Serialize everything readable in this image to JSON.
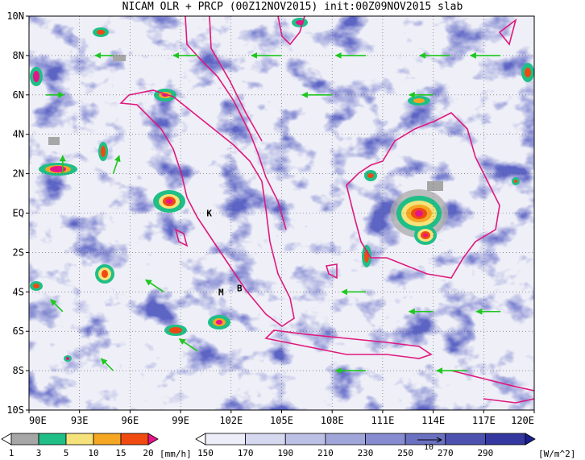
{
  "chart_data": {
    "type": "heatmap",
    "title": "NICAM OLR + PRCP (00Z12NOV2015) init:00Z09NOV2015 slab",
    "x_axis": {
      "range": [
        90,
        120
      ],
      "ticks": [
        {
          "value": 90,
          "label": "90E"
        },
        {
          "value": 93,
          "label": "93E"
        },
        {
          "value": 96,
          "label": "96E"
        },
        {
          "value": 99,
          "label": "99E"
        },
        {
          "value": 102,
          "label": "102E"
        },
        {
          "value": 105,
          "label": "105E"
        },
        {
          "value": 108,
          "label": "108E"
        },
        {
          "value": 111,
          "label": "111E"
        },
        {
          "value": 114,
          "label": "114E"
        },
        {
          "value": 117,
          "label": "117E"
        },
        {
          "value": 120,
          "label": "120E"
        }
      ]
    },
    "y_axis": {
      "range": [
        -10,
        10
      ],
      "ticks": [
        {
          "value": 10,
          "label": "10N"
        },
        {
          "value": 8,
          "label": "8N"
        },
        {
          "value": 6,
          "label": "6N"
        },
        {
          "value": 4,
          "label": "4N"
        },
        {
          "value": 2,
          "label": "2N"
        },
        {
          "value": 0,
          "label": "EQ"
        },
        {
          "value": -2,
          "label": "2S"
        },
        {
          "value": -4,
          "label": "4S"
        },
        {
          "value": -6,
          "label": "6S"
        },
        {
          "value": -8,
          "label": "8S"
        },
        {
          "value": -10,
          "label": "10S"
        }
      ]
    },
    "grid": "dotted",
    "station_markers": [
      {
        "label": "K",
        "lon": 100.7,
        "lat": 0.0
      },
      {
        "label": "M",
        "lon": 101.4,
        "lat": -4.0
      },
      {
        "label": "B",
        "lon": 102.5,
        "lat": -3.8
      }
    ],
    "precip_colorbar": {
      "unit": "[mm/h]",
      "levels": [
        "1",
        "3",
        "5",
        "10",
        "15",
        "20"
      ],
      "colors": [
        "#ffffff",
        "#a6a6a6",
        "#1fbf87",
        "#f6e27a",
        "#f5a623",
        "#f04a10",
        "#e6148a"
      ]
    },
    "olr_colorbar": {
      "unit": "[W/m^2]",
      "levels": [
        "150",
        "170",
        "190",
        "210",
        "230",
        "250",
        "270",
        "290"
      ],
      "colors": [
        "#ffffff",
        "#ecedf8",
        "#d6d8ef",
        "#bcc0e5",
        "#a1a6da",
        "#868ccf",
        "#6b71c1",
        "#4d52b0",
        "#33379f",
        "#1b1f8e"
      ]
    },
    "wind_reference": {
      "label": "10"
    },
    "wind_vectors_sample": [
      {
        "lon": 91,
        "lat": 6,
        "u": 3,
        "v": 0
      },
      {
        "lon": 95,
        "lat": 8,
        "u": -3,
        "v": 0
      },
      {
        "lon": 100,
        "lat": 8,
        "u": -4,
        "v": 0
      },
      {
        "lon": 105,
        "lat": 8,
        "u": -5,
        "v": 0
      },
      {
        "lon": 110,
        "lat": 8,
        "u": -5,
        "v": 0
      },
      {
        "lon": 115,
        "lat": 8,
        "u": -5,
        "v": 0
      },
      {
        "lon": 118,
        "lat": 8,
        "u": -5,
        "v": 0
      },
      {
        "lon": 108,
        "lat": 6,
        "u": -5,
        "v": 0
      },
      {
        "lon": 114,
        "lat": 6,
        "u": -4,
        "v": 0
      },
      {
        "lon": 92,
        "lat": 2,
        "u": 0,
        "v": 3
      },
      {
        "lon": 95,
        "lat": 2,
        "u": 1,
        "v": 3
      },
      {
        "lon": 98,
        "lat": -4,
        "u": -3,
        "v": 2
      },
      {
        "lon": 100,
        "lat": -7,
        "u": -3,
        "v": 2
      },
      {
        "lon": 110,
        "lat": -4,
        "u": -4,
        "v": 0
      },
      {
        "lon": 114,
        "lat": -5,
        "u": -4,
        "v": 0
      },
      {
        "lon": 118,
        "lat": -5,
        "u": -4,
        "v": 0
      },
      {
        "lon": 110,
        "lat": -8,
        "u": -5,
        "v": 0
      },
      {
        "lon": 116,
        "lat": -8,
        "u": -5,
        "v": 0
      },
      {
        "lon": 95,
        "lat": -8,
        "u": -2,
        "v": 2
      },
      {
        "lon": 92,
        "lat": -5,
        "u": -2,
        "v": 2
      }
    ]
  }
}
